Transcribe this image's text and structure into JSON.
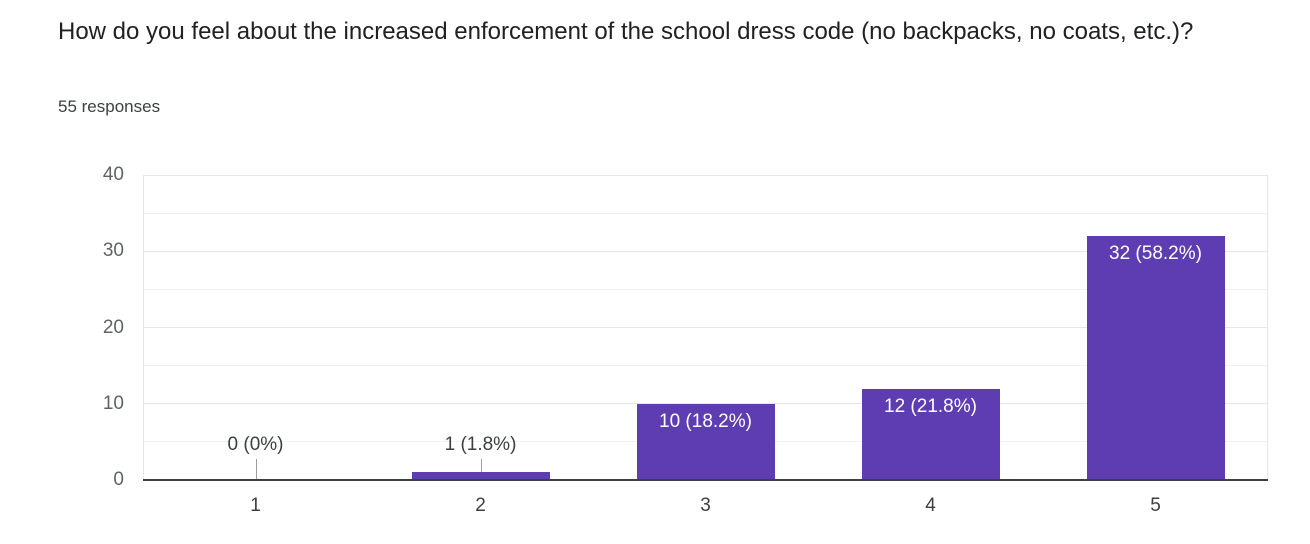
{
  "header": {
    "title": "How do you feel about the increased enforcement of the school dress code (no backpacks, no coats, etc.)?",
    "responses_count": "55 responses"
  },
  "chart_data": {
    "type": "bar",
    "title": "How do you feel about the increased enforcement of the school dress code (no backpacks, no coats, etc.)?",
    "subtitle": "55 responses",
    "categories": [
      "1",
      "2",
      "3",
      "4",
      "5"
    ],
    "values": [
      0,
      1,
      10,
      12,
      32
    ],
    "data_labels": [
      "0 (0%)",
      "1 (1.8%)",
      "10 (18.2%)",
      "12 (21.8%)",
      "32 (58.2%)"
    ],
    "xlabel": "",
    "ylabel": "",
    "ylim": [
      0,
      40
    ],
    "yticks": [
      0,
      10,
      20,
      30,
      40
    ],
    "grid": true,
    "legend": "none",
    "bar_color": "#5e3cb2",
    "annotation_color_inside": "#ffffff",
    "annotation_color_outside": "#3c4043",
    "axis_label_color_y": "#5f6368",
    "axis_label_color_x": "#3c4043"
  }
}
